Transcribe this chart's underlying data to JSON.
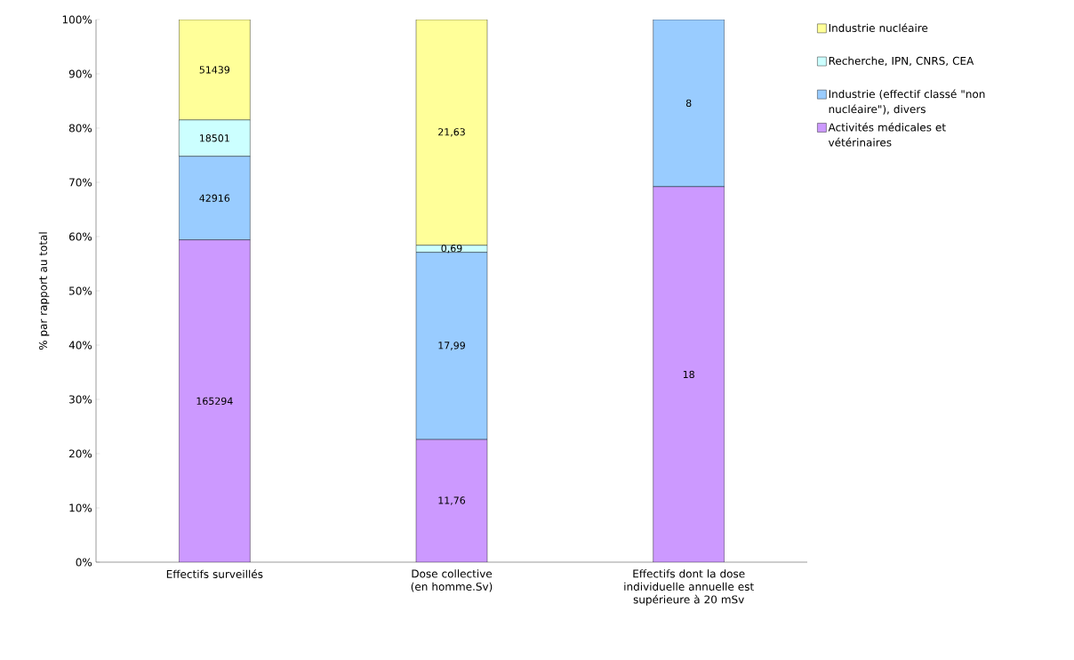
{
  "chart_data": {
    "type": "bar",
    "stacked": true,
    "ylabel": "% par rapport au total",
    "categories": [
      "Effectifs surveillés",
      "Dose collective (en homme.Sv)",
      "Effectifs dont la dose individuelle annuelle est supérieure à 20 mSv"
    ],
    "series": [
      {
        "name": "Activités médicales et vétérinaires",
        "color": "#cc99ff",
        "values": [
          59.4,
          22.6,
          69.2
        ]
      },
      {
        "name": "Industrie (effectif classé \"non nucléaire\"), divers",
        "color": "#99ccff",
        "values": [
          15.4,
          34.5,
          30.8
        ]
      },
      {
        "name": "Recherche, IPN, CNRS, CEA",
        "color": "#ccffff",
        "values": [
          6.7,
          1.3,
          0
        ]
      },
      {
        "name": "Industrie nucléaire",
        "color": "#ffff99",
        "values": [
          18.5,
          41.6,
          0
        ]
      }
    ],
    "annotations": [
      "165294",
      "42916",
      "18501",
      "51439",
      "11,76",
      "17,99",
      "0,69",
      "21,63",
      "18",
      "8"
    ],
    "grid": false,
    "ylim": [
      0,
      100
    ],
    "yticks": [
      {
        "value": 0,
        "label": "0%"
      },
      {
        "value": 10,
        "label": "10%"
      },
      {
        "value": 20,
        "label": "20%"
      },
      {
        "value": 30,
        "label": "30%"
      },
      {
        "value": 40,
        "label": "40%"
      },
      {
        "value": 50,
        "label": "50%"
      },
      {
        "value": 60,
        "label": "60%"
      },
      {
        "value": 70,
        "label": "70%"
      },
      {
        "value": 80,
        "label": "80%"
      },
      {
        "value": 90,
        "label": "90%"
      },
      {
        "value": 100,
        "label": "100%"
      }
    ],
    "legend": "right"
  }
}
